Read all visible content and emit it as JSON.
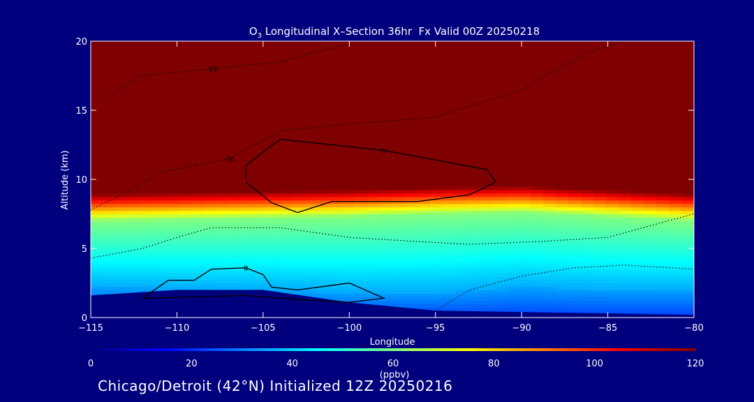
{
  "footer": "Chicago/Detroit (42°N) Initialized 12Z 20250216",
  "chart_data": {
    "type": "heatmap",
    "title_main": "O",
    "title_sub": "3",
    "title_rest": " Longitudinal X–Section 36hr  Fx Valid 00Z 20250218",
    "xlabel": "Longitude",
    "ylabel": "Altitude (km)",
    "xlim": [
      -115,
      -80
    ],
    "ylim": [
      0,
      20
    ],
    "xticks": [
      -115,
      -110,
      -105,
      -100,
      -95,
      -90,
      -85,
      -80
    ],
    "yticks": [
      0,
      5,
      10,
      15,
      20
    ],
    "colorbar": {
      "label": "(ppbv)",
      "range": [
        0,
        120
      ],
      "ticks": [
        0,
        20,
        40,
        60,
        80,
        100,
        120
      ],
      "colors": [
        "#00007f",
        "#0000ff",
        "#0080ff",
        "#00ffff",
        "#80ff80",
        "#ffff00",
        "#ff8000",
        "#ff0000",
        "#7f0000"
      ]
    },
    "field": {
      "lon": [
        -115,
        -110,
        -105,
        -100,
        -95,
        -90,
        -85,
        -80
      ],
      "tropopause_km": [
        9.0,
        9.1,
        9.2,
        9.3,
        9.5,
        9.6,
        9.3,
        9.0
      ],
      "boundary_layer_km": [
        2.2,
        2.1,
        2.0,
        1.8,
        1.8,
        2.2,
        2.0,
        2.0
      ],
      "terrain_km": [
        1.6,
        2.0,
        2.0,
        1.1,
        0.5,
        0.4,
        0.3,
        0.2
      ]
    },
    "contours": [
      {
        "label": "0",
        "style": "solid",
        "points": [
          [
            -106,
            10
          ],
          [
            -106,
            11
          ],
          [
            -105,
            12
          ],
          [
            -104,
            12.9
          ],
          [
            -98,
            12.1
          ],
          [
            -92,
            10.7
          ],
          [
            -91.5,
            9.8
          ],
          [
            -93,
            8.9
          ],
          [
            -96,
            8.4
          ],
          [
            -101,
            8.4
          ],
          [
            -103,
            7.6
          ],
          [
            -104.5,
            8.3
          ],
          [
            -106,
            9.8
          ]
        ]
      },
      {
        "label": "0",
        "style": "solid",
        "points": [
          [
            -112,
            1.4
          ],
          [
            -110.5,
            2.7
          ],
          [
            -109,
            2.7
          ],
          [
            -108,
            3.5
          ],
          [
            -106,
            3.6
          ],
          [
            -105,
            3.1
          ],
          [
            -104.5,
            2.2
          ],
          [
            -103,
            2.0
          ],
          [
            -100,
            2.5
          ],
          [
            -98,
            1.4
          ],
          [
            -100,
            1.1
          ],
          [
            -103,
            1.3
          ],
          [
            -106,
            1.6
          ],
          [
            -112,
            1.4
          ]
        ]
      },
      {
        "label": "-10",
        "style": "dotted",
        "points": [
          [
            -115,
            7.8
          ],
          [
            -113,
            9.0
          ],
          [
            -111,
            10.5
          ],
          [
            -107,
            11.5
          ],
          [
            -104,
            13.5
          ],
          [
            -100,
            14.0
          ],
          [
            -95,
            14.5
          ],
          [
            -90,
            16.5
          ],
          [
            -86,
            19.3
          ],
          [
            -84,
            20
          ]
        ]
      },
      {
        "label": "-10",
        "style": "dotted",
        "points": [
          [
            -114,
            16.0
          ],
          [
            -112,
            17.5
          ],
          [
            -108,
            18.0
          ],
          [
            -104,
            18.5
          ],
          [
            -102,
            19.2
          ],
          [
            -100,
            19.8
          ]
        ]
      },
      {
        "label": "",
        "style": "dotted",
        "points": [
          [
            -115,
            4.3
          ],
          [
            -112,
            5.0
          ],
          [
            -110,
            5.8
          ],
          [
            -108,
            6.5
          ],
          [
            -104,
            6.5
          ],
          [
            -100,
            5.8
          ],
          [
            -96,
            5.5
          ],
          [
            -93,
            5.3
          ],
          [
            -89,
            5.5
          ],
          [
            -85,
            5.8
          ],
          [
            -81.5,
            7.0
          ],
          [
            -80,
            7.5
          ]
        ]
      },
      {
        "label": "",
        "style": "dotted",
        "points": [
          [
            -95,
            0.5
          ],
          [
            -93,
            2.0
          ],
          [
            -90,
            3.0
          ],
          [
            -87,
            3.6
          ],
          [
            -84,
            3.8
          ],
          [
            -80,
            3.5
          ]
        ]
      }
    ]
  }
}
